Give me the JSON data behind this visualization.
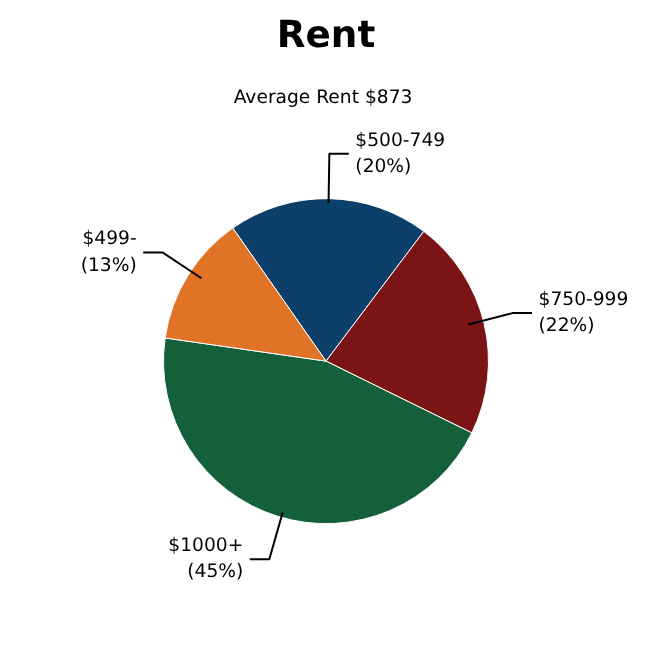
{
  "chart_data": {
    "type": "pie",
    "title": "Rent",
    "subtitle": "Average Rent  $873",
    "categories": [
      "$500-749",
      "$750-999",
      "$1000+",
      "$499-"
    ],
    "values": [
      20,
      22,
      45,
      13
    ],
    "colors": [
      "#0d3f6b",
      "#7a1416",
      "#13603a",
      "#e07325"
    ],
    "value_labels": [
      "(20%)",
      "(22%)",
      "(45%)",
      "(13%)"
    ]
  }
}
